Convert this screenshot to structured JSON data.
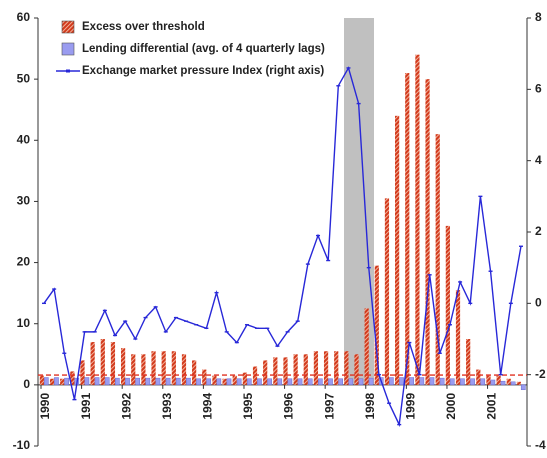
{
  "chart_data": {
    "type": "bar_line",
    "categories": [
      "1990",
      null,
      null,
      null,
      "1991",
      null,
      null,
      null,
      "1992",
      null,
      null,
      null,
      "1993",
      null,
      null,
      null,
      "1994",
      null,
      null,
      null,
      "1995",
      null,
      null,
      null,
      "1996",
      null,
      null,
      null,
      "1997",
      null,
      null,
      null,
      "1998",
      null,
      null,
      null,
      "1999",
      null,
      null,
      null,
      "2000",
      null,
      null,
      null,
      "2001",
      null,
      null,
      null
    ],
    "series": [
      {
        "name": "Excess over threshold",
        "type": "bar",
        "color": "#d23a1c",
        "values": [
          1.5,
          1,
          1,
          2.2,
          4,
          7,
          7.5,
          7,
          6,
          5,
          5,
          5.5,
          5.5,
          5.5,
          5,
          4,
          2.5,
          1.5,
          1,
          1.5,
          2,
          3,
          4,
          4.5,
          4.5,
          5,
          5,
          5.5,
          5.5,
          5.5,
          5.5,
          5,
          12.5,
          19.5,
          30.5,
          44,
          51,
          54,
          50,
          41,
          26,
          15.5,
          7.5,
          2.5,
          1.5,
          1.5,
          1,
          0.5
        ]
      },
      {
        "name": "Lending differential (avg. of 4 quarterly lags)",
        "type": "bar",
        "color": "#9a9cf0",
        "values": [
          1.2,
          1.2,
          1.1,
          1.1,
          1.2,
          1.2,
          1.2,
          1.1,
          1.1,
          1.1,
          1.1,
          1.1,
          1.1,
          1.1,
          1.1,
          1.0,
          1.0,
          1.0,
          1.0,
          1.0,
          1.0,
          1.0,
          1.0,
          1.0,
          1.0,
          1.0,
          1.0,
          1.0,
          1.0,
          1.0,
          1.0,
          1.0,
          1.1,
          1.2,
          1.2,
          1.2,
          1.2,
          1.2,
          1.2,
          1.1,
          1.0,
          1.0,
          1.0,
          1.0,
          0.8,
          0.6,
          0.5,
          -0.8
        ]
      },
      {
        "name": "Exchange market pressure Index (right axis)",
        "type": "line",
        "axis": "y2",
        "color": "#2828d8",
        "values": [
          0,
          0.4,
          -1.4,
          -2.7,
          -0.8,
          -0.8,
          -0.2,
          -0.9,
          -0.5,
          -1.0,
          -0.4,
          -0.1,
          -0.8,
          -0.4,
          -0.5,
          -0.6,
          -0.7,
          0.3,
          -0.8,
          -1.1,
          -0.6,
          -0.7,
          -0.7,
          -1.2,
          -0.8,
          -0.5,
          1.1,
          1.9,
          1.2,
          6.1,
          6.6,
          5.6,
          1.0,
          -2.0,
          -2.8,
          -3.4,
          -1.1,
          -2.0,
          0.8,
          -1.4,
          -0.6,
          0.6,
          0.0,
          3.0,
          0.9,
          -2.0,
          0.0,
          1.6
        ]
      }
    ],
    "reference_line": {
      "value": 1.6,
      "color": "#e03020"
    },
    "ylim": [
      -10,
      60
    ],
    "yticks": [
      -10,
      0,
      10,
      20,
      30,
      40,
      50,
      60
    ],
    "y2lim": [
      -4,
      8
    ],
    "y2ticks": [
      -4,
      -2,
      0,
      2,
      4,
      6,
      8
    ]
  }
}
